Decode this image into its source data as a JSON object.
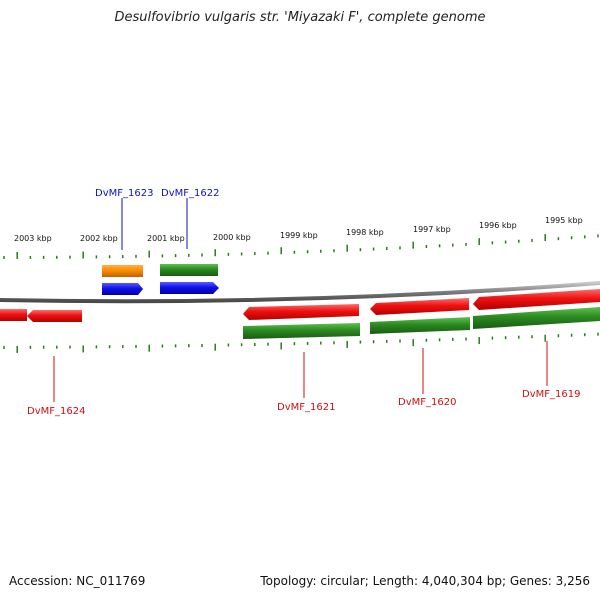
{
  "title": "Desulfovibrio vulgaris str. 'Miyazaki F', complete genome",
  "footer": {
    "accession": "Accession: NC_011769",
    "stats": "Topology: circular; Length: 4,040,304 bp; Genes: 3,256"
  },
  "colors": {
    "backbone": "#8a8a8a",
    "tick": "#2a7a1a",
    "forward_label": "#1010c0",
    "reverse_label": "#cc1010",
    "red_gene": "#ee1111",
    "green_gene": "#2a8a20",
    "blue_gene": "#1010ee",
    "orange_gene": "#ff8c00"
  },
  "scale_labels": [
    "2003 kbp",
    "2002 kbp",
    "2001 kbp",
    "2000 kbp",
    "1999 kbp",
    "1998 kbp",
    "1997 kbp",
    "1996 kbp",
    "1995 kbp"
  ],
  "gene_labels": [
    {
      "id": "DvMF_1623",
      "strand": "forward"
    },
    {
      "id": "DvMF_1622",
      "strand": "forward"
    },
    {
      "id": "DvMF_1624",
      "strand": "reverse"
    },
    {
      "id": "DvMF_1621",
      "strand": "reverse"
    },
    {
      "id": "DvMF_1620",
      "strand": "reverse"
    },
    {
      "id": "DvMF_1619",
      "strand": "reverse"
    }
  ]
}
